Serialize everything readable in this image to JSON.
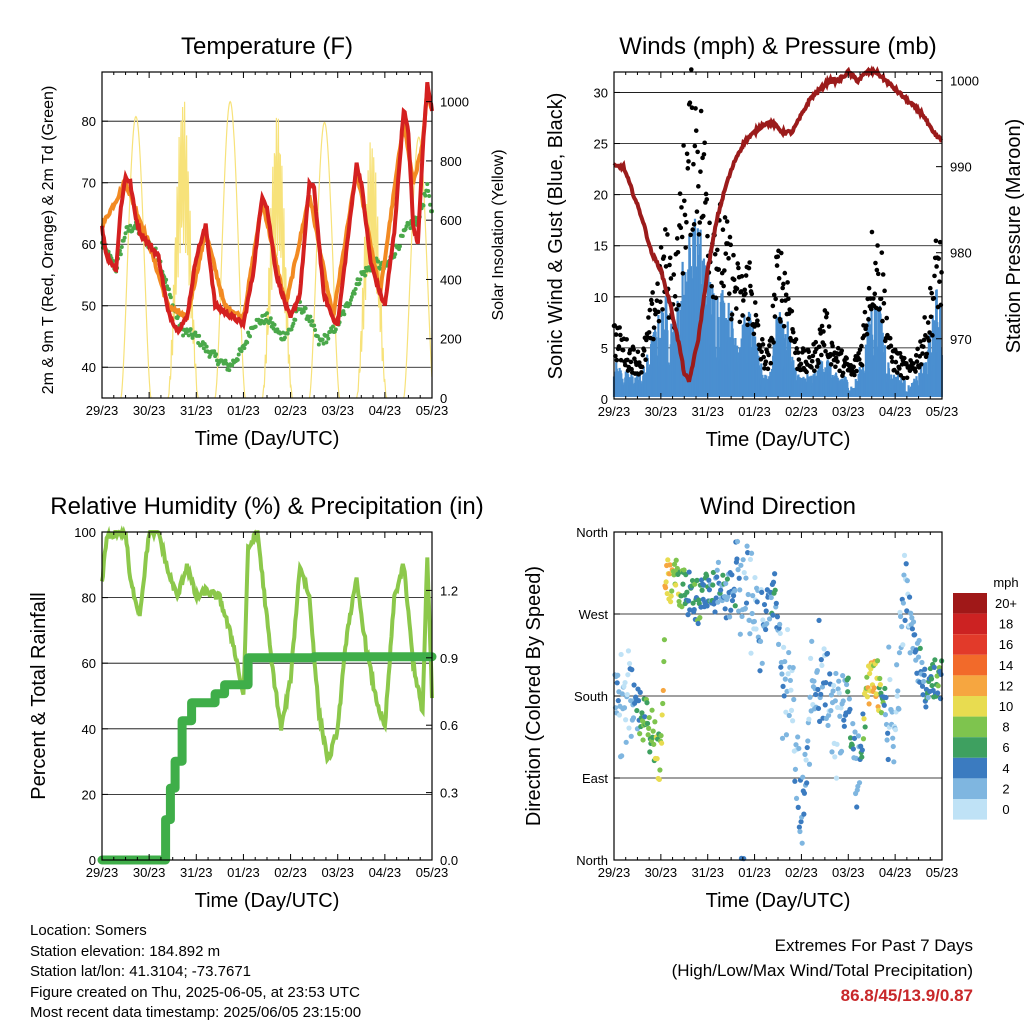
{
  "colors": {
    "temp_2m": "#d42020",
    "temp_9m": "#f28a22",
    "dewpoint": "#4aa84a",
    "insolation": "#f7e27a",
    "wind": "#4a8fd0",
    "gust": "#000000",
    "pressure": "#9b1b1b",
    "rh": "#8cc84b",
    "precip": "#3fae49",
    "extremes": "#c8282a"
  },
  "x_ticks": [
    "29/23",
    "30/23",
    "31/23",
    "01/23",
    "02/23",
    "03/23",
    "04/23",
    "05/23"
  ],
  "wind_speed_scale": {
    "unit": "mph",
    "labels": [
      "20+",
      "18",
      "16",
      "14",
      "12",
      "10",
      "8",
      "6",
      "4",
      "2",
      "0"
    ],
    "colors": [
      "#a01818",
      "#cc2222",
      "#e23a2a",
      "#f26a2a",
      "#f6a640",
      "#e8dc50",
      "#7ec44e",
      "#3ea060",
      "#3b7bc0",
      "#7fb6e0",
      "#bfe2f6"
    ]
  },
  "chart_data": [
    {
      "type": "line",
      "title": "Temperature (F)",
      "xlabel": "Time (Day/UTC)",
      "ylabel": "2m & 9m T (Red, Orange) & 2m Td (Green)",
      "y2label": "Solar Insolation (Yellow)",
      "x_ticks": [
        "29/23",
        "30/23",
        "31/23",
        "01/23",
        "02/23",
        "03/23",
        "04/23",
        "05/23"
      ],
      "x_range_days": [
        0,
        7
      ],
      "ylim": [
        35,
        88
      ],
      "yticks": [
        40,
        50,
        60,
        70,
        80
      ],
      "y2lim": [
        0,
        1100
      ],
      "y2ticks": [
        0,
        200,
        400,
        600,
        800,
        1000
      ],
      "series": [
        {
          "name": "2m T",
          "x": [
            0,
            0.1,
            0.2,
            0.3,
            0.4,
            0.5,
            0.6,
            0.7,
            0.8,
            0.9,
            1.0,
            1.1,
            1.2,
            1.4,
            1.6,
            1.8,
            2.0,
            2.2,
            2.4,
            2.6,
            2.8,
            3.0,
            3.2,
            3.4,
            3.5,
            3.7,
            3.9,
            4.0,
            4.2,
            4.4,
            4.5,
            4.7,
            4.9,
            5.0,
            5.2,
            5.4,
            5.5,
            5.7,
            5.9,
            6.0,
            6.2,
            6.4,
            6.5,
            6.6,
            6.7,
            6.8,
            6.9,
            7.0
          ],
          "values": [
            63,
            58,
            57,
            56,
            66,
            71,
            70,
            65,
            62,
            61,
            60,
            59,
            58,
            49,
            46,
            48,
            58,
            63,
            50,
            49,
            48,
            47,
            55,
            68,
            66,
            55,
            50,
            48,
            52,
            70,
            69,
            52,
            48,
            47,
            60,
            73,
            70,
            57,
            52,
            50,
            62,
            82,
            78,
            63,
            60,
            75,
            86,
            82
          ]
        },
        {
          "name": "9m T",
          "x": [
            0,
            0.5,
            1.0,
            1.4,
            1.8,
            2.2,
            2.6,
            3.0,
            3.4,
            3.9,
            4.4,
            4.9,
            5.4,
            5.9,
            6.4,
            6.6,
            6.8,
            6.9,
            7.0
          ],
          "values": [
            63,
            70,
            60,
            50,
            48,
            62,
            50,
            48,
            67,
            50,
            68,
            48,
            72,
            52,
            80,
            70,
            76,
            85,
            82
          ]
        },
        {
          "name": "2m Td",
          "x": [
            0,
            0.3,
            0.5,
            0.7,
            1.0,
            1.2,
            1.5,
            1.7,
            2.0,
            2.2,
            2.5,
            2.7,
            3.0,
            3.2,
            3.5,
            3.8,
            4.0,
            4.2,
            4.4,
            4.6,
            4.8,
            5.0,
            5.2,
            5.5,
            5.8,
            6.0,
            6.3,
            6.5,
            6.7,
            6.9,
            7.0
          ],
          "values": [
            60,
            56,
            62,
            63,
            60,
            58,
            50,
            46,
            45,
            43,
            41,
            40,
            43,
            47,
            48,
            45,
            46,
            50,
            48,
            44,
            45,
            47,
            50,
            55,
            57,
            56,
            60,
            63,
            64,
            69,
            65
          ]
        },
        {
          "name": "Solar Insolation",
          "axis": "y2",
          "day_peaks": [
            550,
            950,
            1020,
            1000,
            960,
            930,
            880,
            880
          ]
        }
      ]
    },
    {
      "type": "scatter",
      "title": "Winds (mph) & Pressure (mb)",
      "xlabel": "Time (Day/UTC)",
      "ylabel": "Sonic Wind & Gust (Blue, Black)",
      "y2label": "Station Pressure (Maroon)",
      "x_ticks": [
        "29/23",
        "30/23",
        "31/23",
        "01/23",
        "02/23",
        "03/23",
        "04/23",
        "05/23"
      ],
      "ylim": [
        0,
        32
      ],
      "yticks": [
        0,
        5,
        10,
        15,
        20,
        25,
        30
      ],
      "y2lim": [
        963,
        1001
      ],
      "y2ticks": [
        970,
        980,
        990,
        1000
      ],
      "series": [
        {
          "name": "Gust",
          "x": [
            0,
            0.3,
            0.6,
            0.9,
            1.1,
            1.3,
            1.5,
            1.7,
            1.9,
            2.1,
            2.3,
            2.5,
            2.7,
            2.9,
            3.1,
            3.3,
            3.5,
            3.7,
            3.9,
            4.1,
            4.3,
            4.5,
            4.7,
            4.9,
            5.1,
            5.3,
            5.5,
            5.7,
            5.9,
            6.1,
            6.3,
            6.5,
            6.7,
            6.9,
            7.0
          ],
          "values": [
            7,
            5,
            4,
            11,
            15,
            12,
            23,
            30,
            25,
            18,
            17,
            14,
            11,
            13,
            6,
            4,
            14,
            12,
            5,
            4,
            5,
            8,
            5,
            4,
            3,
            6,
            15,
            14,
            5,
            4,
            3,
            5,
            8,
            15,
            14
          ]
        },
        {
          "name": "Wind",
          "x": [
            0,
            0.3,
            0.6,
            0.9,
            1.1,
            1.3,
            1.5,
            1.7,
            1.9,
            2.1,
            2.3,
            2.5,
            2.7,
            2.9,
            3.1,
            3.3,
            3.5,
            3.7,
            3.9,
            4.1,
            4.3,
            4.5,
            4.7,
            4.9,
            5.1,
            5.3,
            5.5,
            5.7,
            5.9,
            6.1,
            6.3,
            6.5,
            6.7,
            6.9,
            7.0
          ],
          "values": [
            3,
            2,
            2,
            6,
            8,
            6,
            12,
            14,
            13,
            9,
            9,
            7,
            6,
            7,
            3,
            2,
            7,
            6,
            2,
            2,
            2,
            4,
            2,
            2,
            1,
            3,
            8,
            7,
            2,
            2,
            1,
            2,
            4,
            9,
            8
          ]
        },
        {
          "name": "Station Pressure",
          "axis": "y2",
          "x": [
            0,
            0.2,
            0.4,
            0.6,
            0.8,
            1.0,
            1.2,
            1.4,
            1.5,
            1.6,
            1.8,
            2.0,
            2.2,
            2.4,
            2.6,
            2.8,
            3.0,
            3.2,
            3.4,
            3.6,
            3.8,
            4.0,
            4.2,
            4.4,
            4.6,
            4.8,
            5.0,
            5.2,
            5.4,
            5.6,
            5.8,
            6.0,
            6.2,
            6.4,
            6.6,
            6.8,
            7.0
          ],
          "values": [
            990,
            990,
            987,
            984,
            980,
            978,
            974,
            969,
            966,
            965,
            970,
            978,
            984,
            988,
            991,
            993,
            994,
            995,
            995,
            994,
            994,
            996,
            998,
            999,
            1000,
            1000,
            1001,
            1000,
            1001,
            1001,
            1000,
            999,
            998,
            997,
            996,
            994,
            993
          ]
        }
      ]
    },
    {
      "type": "line",
      "title": "Relative Humidity (%) & Precipitation (in)",
      "xlabel": "Time (Day/UTC)",
      "ylabel": "Percent & Total Rainfall",
      "x_ticks": [
        "29/23",
        "30/23",
        "31/23",
        "01/23",
        "02/23",
        "03/23",
        "04/23",
        "05/23"
      ],
      "ylim": [
        0,
        100
      ],
      "yticks": [
        0,
        20,
        40,
        60,
        80,
        100
      ],
      "y2lim": [
        0,
        1.46
      ],
      "y2ticks": [
        "0.0",
        "0.3",
        "0.6",
        "0.9",
        "1.2"
      ],
      "series": [
        {
          "name": "Relative Humidity",
          "x": [
            0,
            0.1,
            0.3,
            0.5,
            0.6,
            0.8,
            1.0,
            1.2,
            1.4,
            1.6,
            1.8,
            2.0,
            2.2,
            2.5,
            2.8,
            3.0,
            3.1,
            3.3,
            3.6,
            3.8,
            4.0,
            4.2,
            4.4,
            4.6,
            4.8,
            5.0,
            5.2,
            5.4,
            5.6,
            5.8,
            6.0,
            6.2,
            6.4,
            6.6,
            6.8,
            6.9,
            7.0
          ],
          "values": [
            85,
            98,
            100,
            100,
            85,
            75,
            100,
            100,
            88,
            80,
            90,
            80,
            82,
            80,
            65,
            50,
            95,
            100,
            60,
            40,
            55,
            90,
            80,
            45,
            30,
            40,
            70,
            85,
            65,
            50,
            40,
            80,
            90,
            60,
            45,
            92,
            50
          ]
        },
        {
          "name": "Total Rainfall",
          "axis": "y2",
          "x": [
            0,
            1.3,
            1.35,
            1.45,
            1.55,
            1.7,
            1.9,
            2.2,
            2.4,
            2.6,
            2.8,
            3.0,
            3.1,
            3.5,
            4.5,
            7.0
          ],
          "values": [
            0.0,
            0.0,
            0.18,
            0.32,
            0.44,
            0.62,
            0.7,
            0.7,
            0.74,
            0.78,
            0.78,
            0.78,
            0.9,
            0.9,
            0.905,
            0.905
          ]
        }
      ]
    },
    {
      "type": "scatter",
      "title": "Wind Direction",
      "xlabel": "Time (Day/UTC)",
      "ylabel": "Direction (Colored By Speed)",
      "x_ticks": [
        "29/23",
        "30/23",
        "31/23",
        "01/23",
        "02/23",
        "03/23",
        "04/23",
        "05/23"
      ],
      "ylim_degrees": [
        0,
        360
      ],
      "yticks": [
        "North",
        "East",
        "South",
        "West",
        "North"
      ],
      "series": [
        {
          "name": "Wind Direction",
          "x": [
            0.1,
            0.3,
            0.6,
            0.8,
            1.0,
            1.1,
            1.3,
            1.5,
            1.6,
            1.8,
            2.0,
            2.2,
            2.4,
            2.6,
            2.8,
            3.0,
            3.2,
            3.4,
            3.6,
            3.8,
            4.0,
            4.2,
            4.4,
            4.6,
            4.8,
            5.0,
            5.2,
            5.4,
            5.6,
            5.8,
            6.0,
            6.2,
            6.4,
            6.6,
            6.8,
            7.0
          ],
          "values": [
            190,
            180,
            160,
            140,
            110,
            310,
            300,
            300,
            290,
            280,
            290,
            300,
            280,
            310,
            300,
            270,
            260,
            300,
            200,
            180,
            50,
            180,
            200,
            170,
            150,
            180,
            80,
            190,
            200,
            170,
            160,
            300,
            250,
            190,
            190,
            200
          ],
          "speeds": [
            3,
            2,
            7,
            8,
            10,
            12,
            10,
            8,
            6,
            7,
            6,
            4,
            5,
            4,
            3,
            2,
            4,
            5,
            3,
            2,
            4,
            3,
            4,
            3,
            2,
            6,
            3,
            11,
            12,
            4,
            2,
            3,
            4,
            5,
            6,
            7
          ]
        }
      ]
    }
  ],
  "footer": {
    "location": "Location: Somers",
    "elevation": "Station elevation: 184.892 m",
    "latlon": "Station lat/lon: 41.3104; -73.7671",
    "created": "Figure created on Thu, 2025-06-05, at 23:53 UTC",
    "recent": "Most recent data timestamp: 2025/06/05 23:15:00",
    "extremes_heading": "Extremes For Past 7 Days",
    "extremes_subheading": "(High/Low/Max Wind/Total Precipitation)",
    "extremes_values": "86.8/45/13.9/0.87"
  }
}
